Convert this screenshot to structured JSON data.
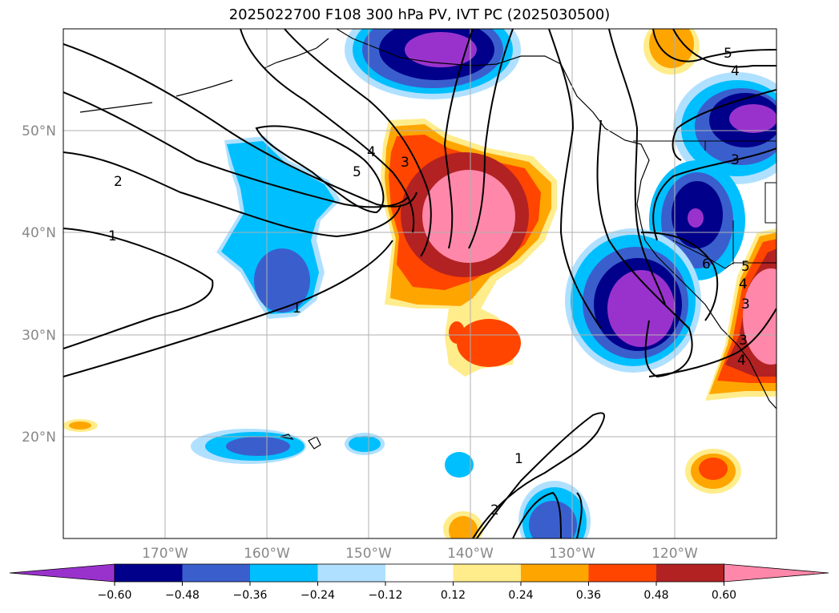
{
  "title": "2025022700 F108 300 hPa PV, IVT PC (2025030500)",
  "map": {
    "lat_labels": [
      "50°N",
      "40°N",
      "30°N",
      "20°N"
    ],
    "lon_labels": [
      "170°W",
      "160°W",
      "150°W",
      "140°W",
      "130°W",
      "120°W"
    ]
  },
  "colorbar": {
    "colors": [
      "#9932cc",
      "#00008b",
      "#3a5fcd",
      "#00bfff",
      "#b0e0ff",
      "#ffffff",
      "#ffec8b",
      "#ffa500",
      "#ff4500",
      "#b22222",
      "#ff88aa"
    ],
    "ticks": [
      "−0.60",
      "−0.48",
      "−0.36",
      "−0.24",
      "−0.12",
      "0.12",
      "0.24",
      "0.36",
      "0.48",
      "0.60"
    ]
  },
  "contour_labels": [
    "5",
    "4",
    "3",
    "2",
    "1",
    "1",
    "4",
    "5",
    "3",
    "3",
    "6",
    "5",
    "4",
    "3",
    "4",
    "1",
    "2"
  ]
}
